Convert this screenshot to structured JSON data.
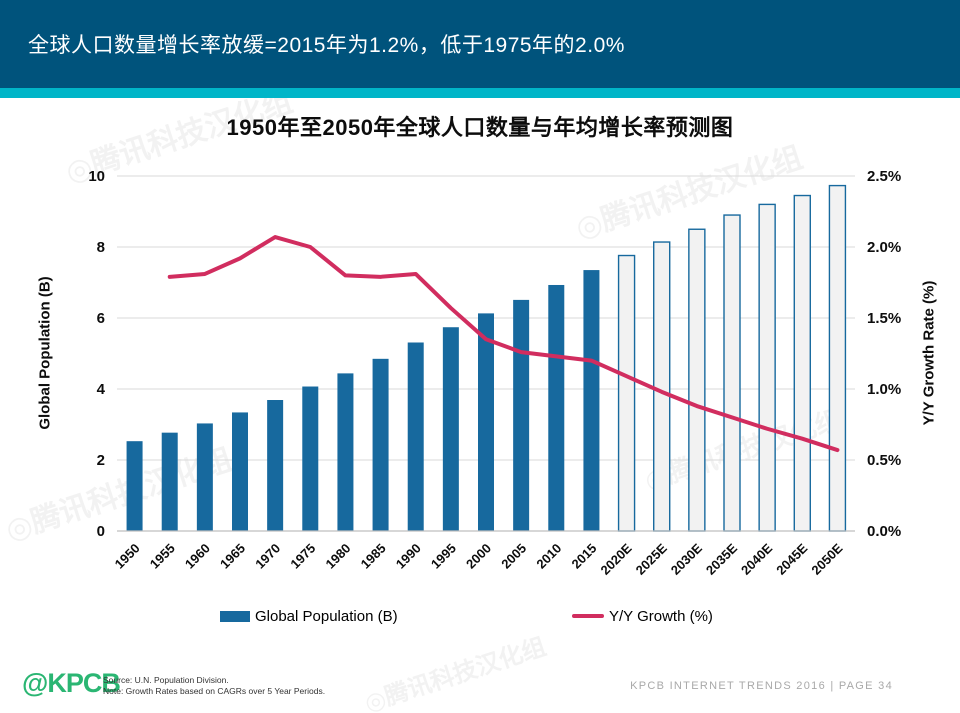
{
  "header": {
    "title": "全球人口数量增长率放缓=2015年为1.2%，低于1975年的2.0%",
    "background_color": "#00537c",
    "accent_color": "#00b5c8"
  },
  "chart_data": {
    "type": "combo-bar-line",
    "title": "1950年至2050年全球人口数量与年均增长率预测图",
    "categories": [
      "1950",
      "1955",
      "1960",
      "1965",
      "1970",
      "1975",
      "1980",
      "1985",
      "1990",
      "1995",
      "2000",
      "2005",
      "2010",
      "2015",
      "2020E",
      "2025E",
      "2030E",
      "2035E",
      "2040E",
      "2045E",
      "2050E"
    ],
    "series": [
      {
        "name": "Global Population (B)",
        "type": "bar",
        "axis": "left",
        "values": [
          2.53,
          2.77,
          3.03,
          3.34,
          3.69,
          4.07,
          4.44,
          4.85,
          5.31,
          5.74,
          6.13,
          6.51,
          6.93,
          7.35,
          7.76,
          8.14,
          8.5,
          8.9,
          9.2,
          9.45,
          9.73
        ],
        "solid_through_index": 13,
        "color": "#17699e",
        "forecast_fill": "#f2f2f2"
      },
      {
        "name": "Y/Y Growth (%)",
        "type": "line",
        "axis": "right",
        "values": [
          null,
          1.79,
          1.81,
          1.92,
          2.07,
          2.0,
          1.8,
          1.79,
          1.81,
          1.57,
          1.35,
          1.26,
          1.23,
          1.2,
          1.09,
          0.98,
          0.88,
          0.8,
          0.72,
          0.65,
          0.57
        ],
        "color": "#d12d5f"
      }
    ],
    "left_axis": {
      "label": "Global Population (B)",
      "min": 0,
      "max": 10,
      "ticks": [
        0,
        2,
        4,
        6,
        8,
        10
      ]
    },
    "right_axis": {
      "label": "Y/Y Growth Rate (%)",
      "min": 0,
      "max": 2.5,
      "tick_labels": [
        "0.0%",
        "0.5%",
        "1.0%",
        "1.5%",
        "2.0%",
        "2.5%"
      ]
    },
    "grid": true,
    "grid_color": "#d9d9d9",
    "baseline_color": "#bfbfbf",
    "legend_position": "bottom"
  },
  "footer": {
    "logo_text": "@KPCB",
    "logo_color": "#2bb673",
    "source_line1": "Source: U.N. Population Division.",
    "source_line2": "Note: Growth Rates based on CAGRs over 5 Year Periods.",
    "page_info": "KPCB INTERNET TRENDS 2016   |   PAGE 34"
  },
  "watermark": {
    "text": "◎腾讯科技汉化组"
  }
}
